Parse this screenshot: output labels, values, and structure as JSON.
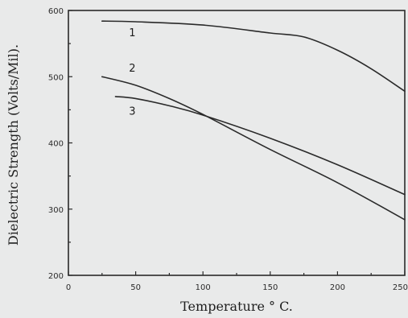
{
  "chart_data": {
    "type": "line",
    "xlabel": "Temperature ° C.",
    "ylabel": "Dielectric Strength (Volts/Mil).",
    "xlim": [
      0,
      250
    ],
    "ylim": [
      200,
      600
    ],
    "x_ticks": [
      0,
      50,
      100,
      150,
      200,
      250
    ],
    "x_tick_labels": [
      "0",
      "50",
      "100",
      "150",
      "200",
      "250"
    ],
    "y_ticks": [
      200,
      300,
      400,
      500,
      600
    ],
    "y_tick_labels": [
      "200",
      "300",
      "400",
      "500",
      "600"
    ],
    "grid": false,
    "series": [
      {
        "name": "1",
        "x": [
          25,
          50,
          100,
          150,
          175,
          200,
          225,
          250
        ],
        "y": [
          584,
          583,
          578,
          566,
          560,
          540,
          512,
          478
        ]
      },
      {
        "name": "2",
        "x": [
          25,
          50,
          75,
          100,
          150,
          200,
          250
        ],
        "y": [
          500,
          487,
          467,
          443,
          390,
          340,
          284
        ]
      },
      {
        "name": "3",
        "x": [
          35,
          50,
          75,
          100,
          150,
          200,
          250
        ],
        "y": [
          470,
          467,
          456,
          442,
          407,
          367,
          322
        ]
      }
    ]
  }
}
